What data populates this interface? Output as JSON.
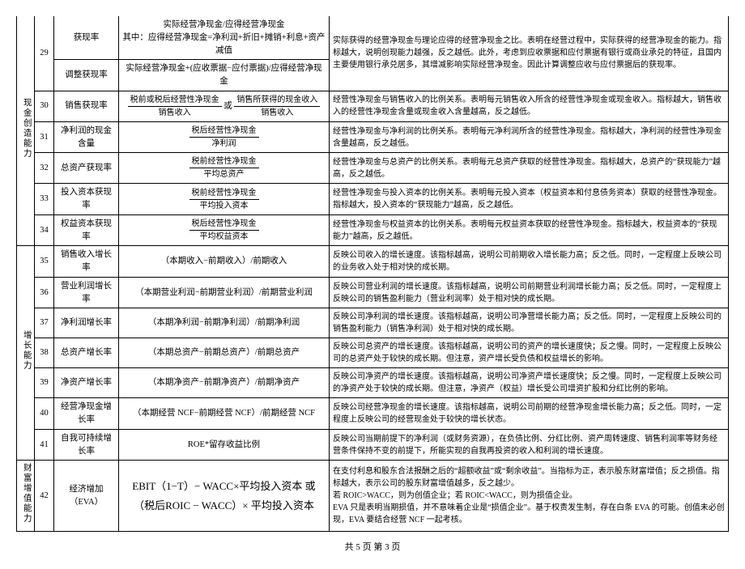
{
  "footer": "共 5 页  第 3 页",
  "categories": [
    {
      "label": "现金创造能力",
      "rowspan": 7
    },
    {
      "label": "增长能力",
      "rowspan": 7
    },
    {
      "label": "财富增值能力",
      "rowspan": 1
    }
  ],
  "rows": [
    {
      "num": "29",
      "numRowspan": 2,
      "name": "获现率",
      "formula_plain": "实际经营净现金/应得经营净现金\n其中：应得经营净现金=净利润+折旧+摊销+利息+资产减值",
      "desc": "实际获得的经营净现金与理论应得的经营净现金之比。表明在经营过程中，实际获得的经营净现金的能力。指标越大，说明创现能力越强，反之越低。此外，考虑到应收票据和应付票据有银行或商业承兑的特征，且国内主要使用银行承兑居多，其增减影响实际经营净现金。因此计算调整应收与应付票据后的获现率。",
      "descRowspan": 2
    },
    {
      "name": "调整获现率",
      "formula_plain": "实际经营净现金+(应收票据−应付票据)/应得经营净现金"
    },
    {
      "num": "30",
      "name": "销售获现率",
      "formula_frac2": {
        "left": {
          "num": "税前或税后经营性净现金",
          "den": "销售收入"
        },
        "mid": "或",
        "right": {
          "num": "销售所获得的现金收入",
          "den": "销售收入"
        }
      },
      "desc": "经营性净现金与销售收入的比例关系。表明每元销售收入所含的经营性净现金或现金收入。指标越大，销售收入的经营性净现金含量或现金收入含量越高，反之越低。"
    },
    {
      "num": "31",
      "name": "净利润的现金含量",
      "formula_frac": {
        "num": "税后经营性净现金",
        "den": "净利润"
      },
      "desc": "经营性净现金与净利润的比例关系。表明每元净利润所含的经营性净现金。指标越大，净利润的经营性净现金含量越高，反之越低。"
    },
    {
      "num": "32",
      "name": "总资产获现率",
      "formula_frac": {
        "num": "税前经营性净现金",
        "den": "平均总资产"
      },
      "desc": "经营性净现金与总资产的比例关系。表明每元总资产获取的经营性净现金。指标越大，总资产的“获现能力”越高，反之越低。"
    },
    {
      "num": "33",
      "name": "投入资本获现率",
      "formula_frac": {
        "num": "税前经营性净现金",
        "den": "平均投入资本"
      },
      "desc": "经营性净现金与投入资本的比例关系。表明每元投入资本（权益资本和付息债务资本）获取的经营性净现金。指标越大，投入资本的“获现能力”越高，反之越低。"
    },
    {
      "num": "34",
      "name": "权益资本获现率",
      "formula_frac": {
        "num": "税后经营性净现金",
        "den": "平均权益资本"
      },
      "desc": "经营性净现金与权益资本的比例关系。表明每元权益资本获取的经营性净现金。指标越大，权益资本的“获现能力”越高，反之越低。"
    },
    {
      "num": "35",
      "name": "销售收入增长率",
      "formula_plain": "（本期收入−前期收入）/前期收入",
      "desc": "反映公司收入的增长速度。该指标越高，说明公司前期收入增长能力高；反之低。同时，一定程度上反映公司的业务收入处于相对快的成长期。"
    },
    {
      "num": "36",
      "name": "营业利润增长率",
      "formula_plain": "（本期营业利润−前期营业利润）/前期营业利润",
      "desc": "反映公司营业利润的增长速度。该指标越高，说明公司前期营业利润增长能力高；反之低。同时，一定程度上反映公司的销售盈利能力（营业利润率）处于相对快的成长期。"
    },
    {
      "num": "37",
      "name": "净利润增长率",
      "formula_plain": "（本期净利润−前期净利润）/前期净利润",
      "desc": "反映公司净利润的增长速度。该指标越高，说明公司净营增长能力高；反之低。同时，一定程度上反映公司的销售盈利能力（销售净利润）处于相对快的成长期。"
    },
    {
      "num": "38",
      "name": "总资产增长率",
      "formula_plain": "（本期总资产−前期总资产）/前期总资产",
      "desc": "反映公司总资产的增长速度。该指标越高，说明公司的资产的增长速度快；反之慢。同时，一定程度上反映公司的总资产处于较快的成长期。但注意，资产增长受负债和权益增长的影响。"
    },
    {
      "num": "39",
      "name": "净资产增长率",
      "formula_plain": "（本期净资产−前期净资产）/前期净资产",
      "desc": "反映公司净资产的增长速度。该指标越高，说明公司净资产增长速度快；反之慢。同时，一定程度上反映公司的净资产处于较快的成长期。但注意，净资产（权益）增长受公司增资扩股和分红比例的影响。"
    },
    {
      "num": "40",
      "name": "经营净现金增长率",
      "formula_plain": "（本期经营 NCF−前期经营 NCF）/前期经营 NCF",
      "desc": "反映公司经营净现金的增长速度。该指标越高，说明公司前期的经营净现金增长能力高；反之低。同时，一定程度上反映公司的经营现金处于较快的增长状态。"
    },
    {
      "num": "41",
      "name": "自我可持续增长率",
      "formula_plain": "ROE*留存收益比例",
      "desc": "反映公司当期前提下的净利润（或财务资源），在负债比例、分红比例、资产周转速度、销售利润率等财务经营条件保持不变的前提下，所能实现的自我再投资的收入和利润的增长速度。"
    },
    {
      "num": "42",
      "name": "经济增加（EVA）",
      "formula_big": "EBIT（1−T）− WACC×平均投入资本 或\n（税后ROIC − WACC）× 平均投入资本",
      "desc": "在支付利息和股东合法报酬之后的“超额收益”或“剩余收益”。当指标为正，表示股东财富增值；反之损值。指标越大，表示公司的股东财富增值越多，反之越少。\n若 ROIC>WACC，则为创值企业；若 ROIC<WACC，则为损值企业。\nEVA 只是表明当期损值，并不意味着企业是“损值企业”。基于权责发生制，存在白条 EVA 的可能。创值未必创现，EVA 要结合经营 NCF 一起考核。"
    }
  ]
}
